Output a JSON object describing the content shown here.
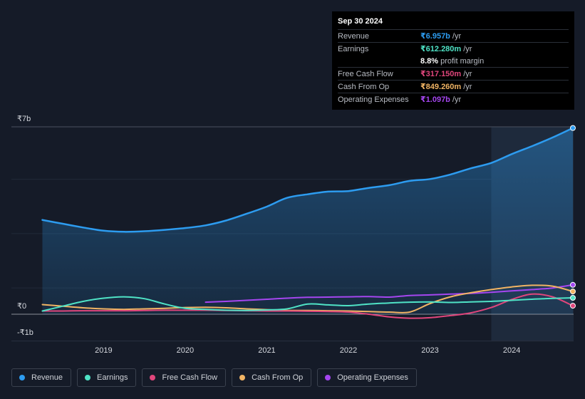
{
  "tooltip": {
    "date": "Sep 30 2024",
    "rows": [
      {
        "label": "Revenue",
        "value": "₹6.957b",
        "unit": "/yr",
        "color": "#2d9cf0"
      },
      {
        "label": "Earnings",
        "value": "₹612.280m",
        "unit": "/yr",
        "color": "#4fe3c6"
      },
      {
        "label": "",
        "value": "8.8%",
        "unit": "profit margin",
        "color": "#ffffff"
      },
      {
        "label": "Free Cash Flow",
        "value": "₹317.150m",
        "unit": "/yr",
        "color": "#e0467c"
      },
      {
        "label": "Cash From Op",
        "value": "₹849.260m",
        "unit": "/yr",
        "color": "#f1b464"
      },
      {
        "label": "Operating Expenses",
        "value": "₹1.097b",
        "unit": "/yr",
        "color": "#a546f0"
      }
    ]
  },
  "legend": [
    {
      "label": "Revenue",
      "color": "#2d9cf0"
    },
    {
      "label": "Earnings",
      "color": "#4fe3c6"
    },
    {
      "label": "Free Cash Flow",
      "color": "#e0467c"
    },
    {
      "label": "Cash From Op",
      "color": "#f1b464"
    },
    {
      "label": "Operating Expenses",
      "color": "#a546f0"
    }
  ],
  "chart_data": {
    "type": "line",
    "title": "",
    "xlabel": "",
    "ylabel": "",
    "y_axis_labels": {
      "top": "₹7b",
      "zero": "₹0",
      "bottom": "-₹1b"
    },
    "ylim": [
      -1.0,
      7.0
    ],
    "xlim": [
      2018.15,
      2024.75
    ],
    "x_ticks": [
      2019,
      2020,
      2021,
      2022,
      2023,
      2024
    ],
    "x_tick_labels": [
      "2019",
      "2020",
      "2021",
      "2022",
      "2023",
      "2024"
    ],
    "highlight_start": 2023.75,
    "series": [
      {
        "name": "Revenue",
        "color": "#2d9cf0",
        "area": true,
        "x": [
          2018.25,
          2018.5,
          2018.75,
          2019.0,
          2019.25,
          2019.5,
          2019.75,
          2020.0,
          2020.25,
          2020.5,
          2020.75,
          2021.0,
          2021.25,
          2021.5,
          2021.75,
          2022.0,
          2022.25,
          2022.5,
          2022.75,
          2023.0,
          2023.25,
          2023.5,
          2023.75,
          2024.0,
          2024.25,
          2024.5,
          2024.75
        ],
        "values": [
          3.52,
          3.38,
          3.24,
          3.12,
          3.08,
          3.1,
          3.15,
          3.22,
          3.32,
          3.5,
          3.75,
          4.02,
          4.35,
          4.48,
          4.58,
          4.6,
          4.72,
          4.82,
          4.98,
          5.05,
          5.22,
          5.45,
          5.65,
          5.98,
          6.28,
          6.6,
          6.957
        ]
      },
      {
        "name": "Earnings",
        "color": "#4fe3c6",
        "area": false,
        "x": [
          2018.25,
          2018.5,
          2018.75,
          2019.0,
          2019.25,
          2019.5,
          2019.75,
          2020.0,
          2020.25,
          2020.5,
          2020.75,
          2021.0,
          2021.25,
          2021.5,
          2021.75,
          2022.0,
          2022.25,
          2022.5,
          2022.75,
          2023.0,
          2023.25,
          2023.5,
          2023.75,
          2024.0,
          2024.25,
          2024.5,
          2024.75
        ],
        "values": [
          0.12,
          0.3,
          0.48,
          0.6,
          0.65,
          0.58,
          0.38,
          0.22,
          0.18,
          0.15,
          0.14,
          0.16,
          0.2,
          0.38,
          0.35,
          0.32,
          0.38,
          0.42,
          0.45,
          0.46,
          0.44,
          0.46,
          0.48,
          0.52,
          0.56,
          0.59,
          0.612
        ]
      },
      {
        "name": "Free Cash Flow",
        "color": "#e0467c",
        "area": false,
        "x": [
          2018.25,
          2018.5,
          2018.75,
          2019.0,
          2019.25,
          2019.5,
          2019.75,
          2020.0,
          2020.25,
          2020.5,
          2020.75,
          2021.0,
          2021.25,
          2021.5,
          2021.75,
          2022.0,
          2022.25,
          2022.5,
          2022.75,
          2023.0,
          2023.25,
          2023.5,
          2023.75,
          2024.0,
          2024.25,
          2024.5,
          2024.75
        ],
        "values": [
          0.12,
          0.12,
          0.13,
          0.13,
          0.13,
          0.14,
          0.15,
          0.15,
          0.15,
          0.14,
          0.13,
          0.12,
          0.12,
          0.11,
          0.1,
          0.08,
          0.0,
          -0.1,
          -0.15,
          -0.13,
          -0.05,
          0.05,
          0.25,
          0.55,
          0.75,
          0.65,
          0.317
        ]
      },
      {
        "name": "Cash From Op",
        "color": "#f1b464",
        "area": false,
        "x": [
          2018.25,
          2018.5,
          2018.75,
          2019.0,
          2019.25,
          2019.5,
          2019.75,
          2020.0,
          2020.25,
          2020.5,
          2020.75,
          2021.0,
          2021.25,
          2021.5,
          2021.75,
          2022.0,
          2022.25,
          2022.5,
          2022.75,
          2023.0,
          2023.25,
          2023.5,
          2023.75,
          2024.0,
          2024.25,
          2024.5,
          2024.75
        ],
        "values": [
          0.36,
          0.3,
          0.24,
          0.2,
          0.18,
          0.2,
          0.22,
          0.25,
          0.26,
          0.24,
          0.2,
          0.17,
          0.14,
          0.14,
          0.13,
          0.12,
          0.1,
          0.08,
          0.08,
          0.4,
          0.65,
          0.8,
          0.92,
          1.02,
          1.08,
          1.05,
          0.849
        ]
      },
      {
        "name": "Operating Expenses",
        "color": "#a546f0",
        "area": false,
        "x": [
          2020.25,
          2020.5,
          2020.75,
          2021.0,
          2021.25,
          2021.5,
          2021.75,
          2022.0,
          2022.25,
          2022.5,
          2022.75,
          2023.0,
          2023.25,
          2023.5,
          2023.75,
          2024.0,
          2024.25,
          2024.5,
          2024.75
        ],
        "values": [
          0.45,
          0.48,
          0.52,
          0.56,
          0.6,
          0.63,
          0.64,
          0.65,
          0.66,
          0.64,
          0.7,
          0.72,
          0.75,
          0.78,
          0.82,
          0.87,
          0.92,
          0.98,
          1.097
        ]
      }
    ]
  }
}
